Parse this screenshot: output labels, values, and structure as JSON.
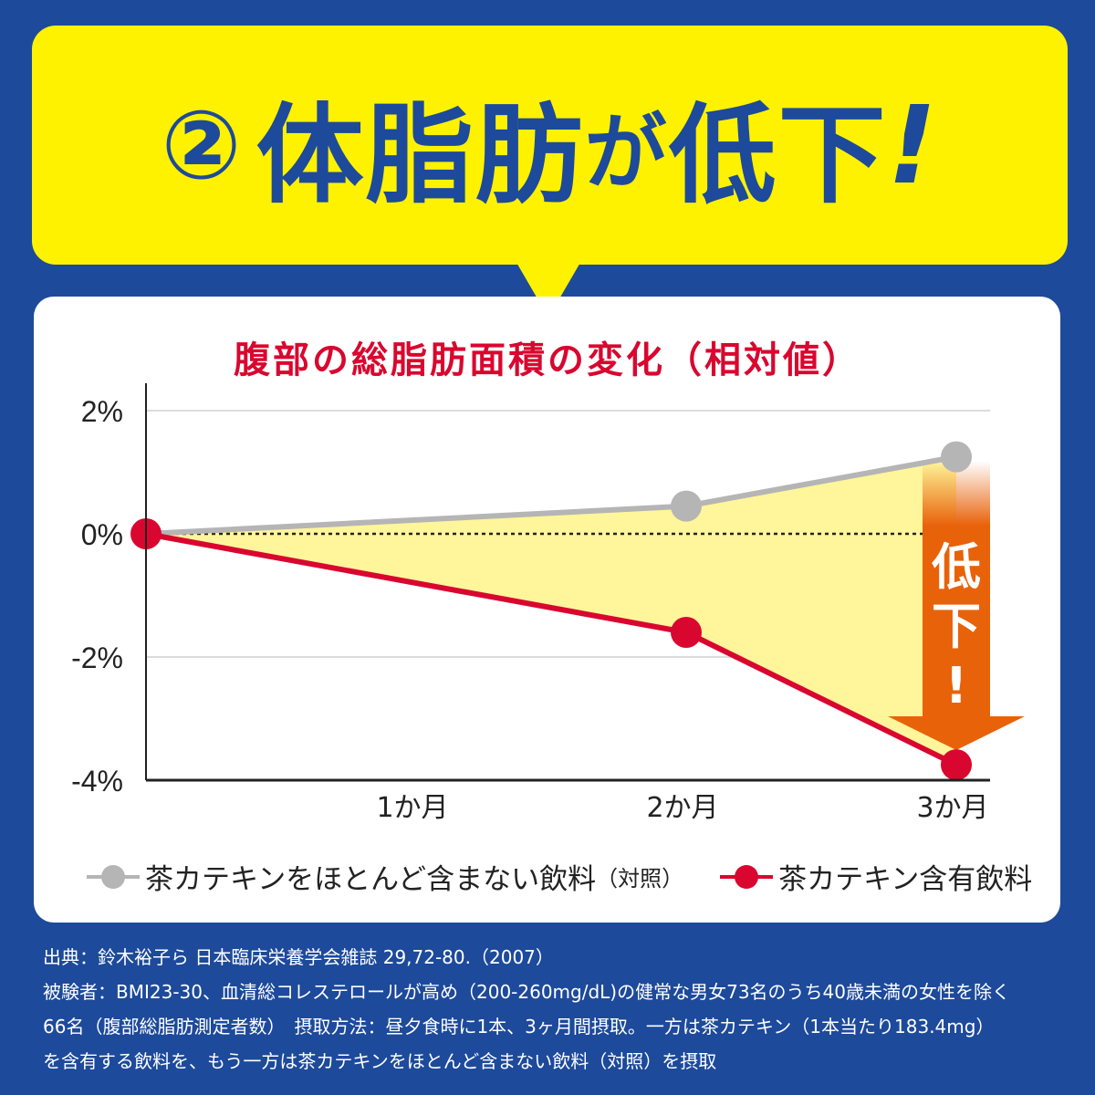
{
  "headline": {
    "number": "②",
    "text1": "体脂肪",
    "text2": "が",
    "text3": "低下",
    "exclaim": "!"
  },
  "colors": {
    "background": "#1d4a9b",
    "bubble": "#fef200",
    "control": "#b5b5b5",
    "catechin": "#d9072f",
    "fill": "#fff59a",
    "arrow": "#e8620a"
  },
  "chart_data": {
    "type": "line",
    "title": "腹部の総脂肪面積の変化（相対値）",
    "x": [
      0,
      2,
      3
    ],
    "xlim": [
      0,
      3.1
    ],
    "x_ticks": [
      {
        "value": 1,
        "label": "1か月"
      },
      {
        "value": 2,
        "label": "2か月"
      },
      {
        "value": 3,
        "label": "3か月"
      }
    ],
    "ylim": [
      -4,
      2
    ],
    "y_ticks": [
      {
        "value": 2,
        "label": "2%"
      },
      {
        "value": 0,
        "label": "0%"
      },
      {
        "value": -2,
        "label": "-2%"
      },
      {
        "value": -4,
        "label": "-4%"
      }
    ],
    "grid": true,
    "series": [
      {
        "name": "茶カテキンをほとんど含まない飲料",
        "name_suffix": "（対照）",
        "values": [
          0,
          0.45,
          1.25
        ],
        "color": "#b5b5b5"
      },
      {
        "name": "茶カテキン含有飲料",
        "name_suffix": "",
        "values": [
          0,
          -1.6,
          -3.75
        ],
        "color": "#d9072f"
      }
    ],
    "annotation": {
      "chars": [
        "低",
        "下",
        "!"
      ]
    },
    "legend_position": "bottom"
  },
  "notes": [
    "出典：鈴木裕子ら 日本臨床栄養学会雑誌 29,72-80.（2007）",
    "被験者：BMI23-30、血清総コレステロールが高め（200-260mg/dL)の健常な男女73名のうち40歳未満の女性を除く",
    "66名（腹部総脂肪測定者数）　摂取方法：昼夕食時に1本、3ヶ月間摂取。一方は茶カテキン（1本当たり183.4mg）",
    "を含有する飲料を、もう一方は茶カテキンをほとんど含まない飲料（対照）を摂取"
  ]
}
